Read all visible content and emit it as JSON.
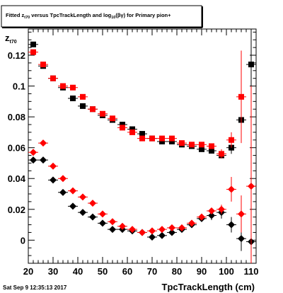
{
  "title": {
    "prefix": "Fitted  z",
    "sub1": "t70",
    "mid": " versus TpcTrackLength and log",
    "sub2": "10",
    "suffix": "(βγ) for Primary pion+"
  },
  "footer": {
    "timestamp": "Sat Sep  9 12:35:13 2017"
  },
  "chart_data": {
    "type": "scatter",
    "xlabel": "TpcTrackLength (cm)",
    "ylabel": "z",
    "ylabel_sub": "t70",
    "xlim": [
      20,
      112
    ],
    "ylim": [
      -0.015,
      0.137
    ],
    "xticks": [
      20,
      30,
      40,
      50,
      60,
      70,
      80,
      90,
      100,
      110
    ],
    "yticks": [
      0,
      0.02,
      0.04,
      0.06,
      0.08,
      0.1,
      0.12
    ],
    "ytick_labels": [
      "0",
      "0.02",
      "0.04",
      "0.06",
      "0.08",
      "0.1",
      "0.12"
    ],
    "colors": {
      "black": "#000000",
      "red": "#ff0000"
    },
    "series": [
      {
        "marker": "square",
        "color": "#000000",
        "points": [
          {
            "x": 22,
            "y": 0.127
          },
          {
            "x": 26,
            "y": 0.113
          },
          {
            "x": 30,
            "y": 0.105
          },
          {
            "x": 34,
            "y": 0.099
          },
          {
            "x": 38,
            "y": 0.092
          },
          {
            "x": 42,
            "y": 0.087
          },
          {
            "x": 46,
            "y": 0.085
          },
          {
            "x": 50,
            "y": 0.081
          },
          {
            "x": 54,
            "y": 0.078
          },
          {
            "x": 58,
            "y": 0.075
          },
          {
            "x": 62,
            "y": 0.072
          },
          {
            "x": 66,
            "y": 0.069
          },
          {
            "x": 70,
            "y": 0.066
          },
          {
            "x": 74,
            "y": 0.064
          },
          {
            "x": 78,
            "y": 0.064
          },
          {
            "x": 82,
            "y": 0.062
          },
          {
            "x": 86,
            "y": 0.061
          },
          {
            "x": 90,
            "y": 0.059
          },
          {
            "x": 94,
            "y": 0.058
          },
          {
            "x": 98,
            "y": 0.055
          },
          {
            "x": 102,
            "y": 0.06,
            "err": 0.004
          },
          {
            "x": 106,
            "y": 0.078,
            "err": 0.012
          },
          {
            "x": 110,
            "y": 0.114,
            "err": 0.055
          }
        ]
      },
      {
        "marker": "square",
        "color": "#ff0000",
        "points": [
          {
            "x": 22,
            "y": 0.122
          },
          {
            "x": 26,
            "y": 0.114
          },
          {
            "x": 30,
            "y": 0.105
          },
          {
            "x": 34,
            "y": 0.1
          },
          {
            "x": 38,
            "y": 0.099
          },
          {
            "x": 42,
            "y": 0.093
          },
          {
            "x": 46,
            "y": 0.085
          },
          {
            "x": 50,
            "y": 0.082
          },
          {
            "x": 54,
            "y": 0.079
          },
          {
            "x": 58,
            "y": 0.073
          },
          {
            "x": 62,
            "y": 0.07
          },
          {
            "x": 66,
            "y": 0.066
          },
          {
            "x": 70,
            "y": 0.066
          },
          {
            "x": 74,
            "y": 0.066
          },
          {
            "x": 78,
            "y": 0.066
          },
          {
            "x": 82,
            "y": 0.063
          },
          {
            "x": 86,
            "y": 0.062
          },
          {
            "x": 90,
            "y": 0.062
          },
          {
            "x": 94,
            "y": 0.061
          },
          {
            "x": 98,
            "y": 0.056,
            "err": 0.003
          },
          {
            "x": 102,
            "y": 0.065,
            "err": 0.005
          },
          {
            "x": 106,
            "y": 0.093,
            "err": 0.03
          },
          {
            "x": 110,
            "y": 0.0,
            "err": 0.0,
            "hidden": true
          }
        ]
      },
      {
        "marker": "diamond",
        "color": "#000000",
        "points": [
          {
            "x": 22,
            "y": 0.052
          },
          {
            "x": 26,
            "y": 0.052
          },
          {
            "x": 30,
            "y": 0.039
          },
          {
            "x": 34,
            "y": 0.031
          },
          {
            "x": 38,
            "y": 0.022
          },
          {
            "x": 42,
            "y": 0.018
          },
          {
            "x": 46,
            "y": 0.015
          },
          {
            "x": 50,
            "y": 0.011
          },
          {
            "x": 54,
            "y": 0.007
          },
          {
            "x": 58,
            "y": 0.007
          },
          {
            "x": 62,
            "y": 0.006
          },
          {
            "x": 66,
            "y": 0.005
          },
          {
            "x": 70,
            "y": 0.002
          },
          {
            "x": 74,
            "y": 0.003
          },
          {
            "x": 78,
            "y": 0.005
          },
          {
            "x": 82,
            "y": 0.007
          },
          {
            "x": 86,
            "y": 0.01
          },
          {
            "x": 90,
            "y": 0.014,
            "err": 0.002
          },
          {
            "x": 94,
            "y": 0.016,
            "err": 0.003
          },
          {
            "x": 98,
            "y": 0.018,
            "err": 0.004
          },
          {
            "x": 102,
            "y": 0.01,
            "err": 0.005
          },
          {
            "x": 106,
            "y": 0.001,
            "err": 0.008
          },
          {
            "x": 110,
            "y": -0.001,
            "err": 0.05
          }
        ]
      },
      {
        "marker": "diamond",
        "color": "#ff0000",
        "points": [
          {
            "x": 22,
            "y": 0.057
          },
          {
            "x": 26,
            "y": 0.063
          },
          {
            "x": 30,
            "y": 0.048
          },
          {
            "x": 34,
            "y": 0.04
          },
          {
            "x": 38,
            "y": 0.032
          },
          {
            "x": 42,
            "y": 0.028
          },
          {
            "x": 46,
            "y": 0.024
          },
          {
            "x": 50,
            "y": 0.017
          },
          {
            "x": 54,
            "y": 0.012
          },
          {
            "x": 58,
            "y": 0.009
          },
          {
            "x": 62,
            "y": 0.007
          },
          {
            "x": 66,
            "y": 0.005
          },
          {
            "x": 70,
            "y": 0.006
          },
          {
            "x": 74,
            "y": 0.007
          },
          {
            "x": 78,
            "y": 0.008
          },
          {
            "x": 82,
            "y": 0.008
          },
          {
            "x": 86,
            "y": 0.011
          },
          {
            "x": 90,
            "y": 0.015,
            "err": 0.002
          },
          {
            "x": 94,
            "y": 0.019,
            "err": 0.002
          },
          {
            "x": 98,
            "y": 0.02,
            "err": 0.003
          },
          {
            "x": 102,
            "y": 0.033,
            "err": 0.008
          },
          {
            "x": 106,
            "y": 0.017,
            "err": 0.012
          },
          {
            "x": 110,
            "y": 0.035,
            "err": 0.065
          }
        ]
      }
    ]
  }
}
